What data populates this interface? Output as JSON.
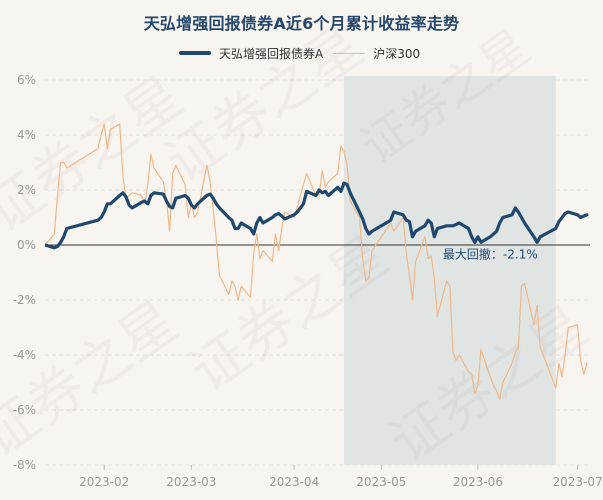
{
  "title": "天弘增强回报债券A近6个月累计收益率走势",
  "legend": {
    "fund_label": "天弘增强回报债券A",
    "index_label": "沪深300",
    "fund_color": "#1f4870",
    "index_color": "#f0b889"
  },
  "watermark_text": "证券之星",
  "colors": {
    "background": "#f8f4ef",
    "drawdown_shade": "#dce0e0",
    "axis_text": "#999999"
  },
  "chart_data": {
    "type": "line",
    "title": "天弘增强回报债券A近6个月累计收益率走势",
    "xlabel": "",
    "ylabel": "",
    "ylim": [
      -8,
      6
    ],
    "yticks": [
      -8,
      -6,
      -4,
      -2,
      0,
      2,
      4,
      6
    ],
    "ytick_labels": [
      "-8%",
      "-6%",
      "-4%",
      "-2%",
      "0%",
      "2%",
      "4%",
      "6%"
    ],
    "x_range": [
      "2023-01-13",
      "2023-07-07"
    ],
    "xticks": [
      "2023-02-01",
      "2023-03-01",
      "2023-04-03",
      "2023-05-01",
      "2023-06-01",
      "2023-07-03"
    ],
    "xtick_labels": [
      "2023-02",
      "2023-03",
      "2023-04",
      "2023-05",
      "2023-06",
      "2023-07"
    ],
    "grid": "horizontal",
    "legend_position": "top-center",
    "series": [
      {
        "name": "天弘增强回报债券A",
        "points": [
          [
            "2023-01-13",
            0.0
          ],
          [
            "2023-01-16",
            -0.1
          ],
          [
            "2023-01-17",
            -0.05
          ],
          [
            "2023-01-18",
            0.1
          ],
          [
            "2023-01-19",
            0.3
          ],
          [
            "2023-01-20",
            0.6
          ],
          [
            "2023-01-30",
            0.9
          ],
          [
            "2023-01-31",
            1.0
          ],
          [
            "2023-02-01",
            1.2
          ],
          [
            "2023-02-02",
            1.5
          ],
          [
            "2023-02-03",
            1.5
          ],
          [
            "2023-02-06",
            1.8
          ],
          [
            "2023-02-07",
            1.9
          ],
          [
            "2023-02-08",
            1.75
          ],
          [
            "2023-02-09",
            1.45
          ],
          [
            "2023-02-10",
            1.35
          ],
          [
            "2023-02-13",
            1.55
          ],
          [
            "2023-02-14",
            1.6
          ],
          [
            "2023-02-15",
            1.5
          ],
          [
            "2023-02-16",
            1.8
          ],
          [
            "2023-02-17",
            1.9
          ],
          [
            "2023-02-20",
            1.85
          ],
          [
            "2023-02-21",
            1.6
          ],
          [
            "2023-02-22",
            1.4
          ],
          [
            "2023-02-23",
            1.35
          ],
          [
            "2023-02-24",
            1.7
          ],
          [
            "2023-02-27",
            1.8
          ],
          [
            "2023-02-28",
            1.7
          ],
          [
            "2023-03-01",
            1.45
          ],
          [
            "2023-03-02",
            1.35
          ],
          [
            "2023-03-03",
            1.5
          ],
          [
            "2023-03-06",
            1.8
          ],
          [
            "2023-03-07",
            1.85
          ],
          [
            "2023-03-08",
            1.7
          ],
          [
            "2023-03-09",
            1.5
          ],
          [
            "2023-03-10",
            1.35
          ],
          [
            "2023-03-13",
            1.0
          ],
          [
            "2023-03-14",
            0.9
          ],
          [
            "2023-03-15",
            0.6
          ],
          [
            "2023-03-16",
            0.6
          ],
          [
            "2023-03-17",
            0.8
          ],
          [
            "2023-03-20",
            0.6
          ],
          [
            "2023-03-21",
            0.4
          ],
          [
            "2023-03-22",
            0.8
          ],
          [
            "2023-03-23",
            1.0
          ],
          [
            "2023-03-24",
            0.8
          ],
          [
            "2023-03-27",
            1.0
          ],
          [
            "2023-03-28",
            1.1
          ],
          [
            "2023-03-29",
            1.15
          ],
          [
            "2023-03-30",
            1.05
          ],
          [
            "2023-03-31",
            0.95
          ],
          [
            "2023-04-03",
            1.1
          ],
          [
            "2023-04-04",
            1.2
          ],
          [
            "2023-04-06",
            1.5
          ],
          [
            "2023-04-07",
            1.95
          ],
          [
            "2023-04-10",
            1.8
          ],
          [
            "2023-04-11",
            2.0
          ],
          [
            "2023-04-12",
            1.9
          ],
          [
            "2023-04-13",
            1.95
          ],
          [
            "2023-04-14",
            1.8
          ],
          [
            "2023-04-17",
            2.1
          ],
          [
            "2023-04-18",
            1.95
          ],
          [
            "2023-04-19",
            2.25
          ],
          [
            "2023-04-20",
            2.2
          ],
          [
            "2023-04-21",
            1.9
          ],
          [
            "2023-04-24",
            1.2
          ],
          [
            "2023-04-25",
            0.95
          ],
          [
            "2023-04-26",
            0.6
          ],
          [
            "2023-04-27",
            0.4
          ],
          [
            "2023-04-28",
            0.5
          ],
          [
            "2023-05-04",
            0.9
          ],
          [
            "2023-05-05",
            1.2
          ],
          [
            "2023-05-08",
            1.1
          ],
          [
            "2023-05-09",
            0.9
          ],
          [
            "2023-05-10",
            0.85
          ],
          [
            "2023-05-11",
            0.3
          ],
          [
            "2023-05-12",
            0.5
          ],
          [
            "2023-05-15",
            0.7
          ],
          [
            "2023-05-16",
            0.9
          ],
          [
            "2023-05-17",
            0.8
          ],
          [
            "2023-05-18",
            0.3
          ],
          [
            "2023-05-19",
            0.6
          ],
          [
            "2023-05-22",
            0.7
          ],
          [
            "2023-05-23",
            0.7
          ],
          [
            "2023-05-24",
            0.7
          ],
          [
            "2023-05-25",
            0.75
          ],
          [
            "2023-05-26",
            0.8
          ],
          [
            "2023-05-29",
            0.6
          ],
          [
            "2023-05-30",
            0.3
          ],
          [
            "2023-05-31",
            0.1
          ],
          [
            "2023-06-01",
            0.3
          ],
          [
            "2023-06-02",
            0.1
          ],
          [
            "2023-06-05",
            0.3
          ],
          [
            "2023-06-06",
            0.4
          ],
          [
            "2023-06-07",
            0.5
          ],
          [
            "2023-06-08",
            0.8
          ],
          [
            "2023-06-09",
            1.0
          ],
          [
            "2023-06-12",
            1.1
          ],
          [
            "2023-06-13",
            1.35
          ],
          [
            "2023-06-14",
            1.2
          ],
          [
            "2023-06-15",
            1.0
          ],
          [
            "2023-06-16",
            0.8
          ],
          [
            "2023-06-19",
            0.3
          ],
          [
            "2023-06-20",
            0.1
          ],
          [
            "2023-06-21",
            0.3
          ],
          [
            "2023-06-26",
            0.6
          ],
          [
            "2023-06-27",
            0.85
          ],
          [
            "2023-06-28",
            1.0
          ],
          [
            "2023-06-29",
            1.15
          ],
          [
            "2023-06-30",
            1.2
          ],
          [
            "2023-07-03",
            1.1
          ],
          [
            "2023-07-04",
            1.0
          ],
          [
            "2023-07-05",
            1.05
          ],
          [
            "2023-07-06",
            1.1
          ]
        ]
      },
      {
        "name": "沪深300",
        "points": [
          [
            "2023-01-13",
            0.0
          ],
          [
            "2023-01-16",
            0.4
          ],
          [
            "2023-01-17",
            1.8
          ],
          [
            "2023-01-18",
            3.0
          ],
          [
            "2023-01-19",
            3.0
          ],
          [
            "2023-01-20",
            2.8
          ],
          [
            "2023-01-30",
            3.5
          ],
          [
            "2023-01-31",
            4.0
          ],
          [
            "2023-02-01",
            4.4
          ],
          [
            "2023-02-02",
            3.5
          ],
          [
            "2023-02-03",
            4.2
          ],
          [
            "2023-02-06",
            4.4
          ],
          [
            "2023-02-07",
            2.5
          ],
          [
            "2023-02-08",
            1.7
          ],
          [
            "2023-02-09",
            1.8
          ],
          [
            "2023-02-10",
            1.9
          ],
          [
            "2023-02-13",
            1.8
          ],
          [
            "2023-02-14",
            1.5
          ],
          [
            "2023-02-15",
            2.2
          ],
          [
            "2023-02-16",
            3.3
          ],
          [
            "2023-02-17",
            2.8
          ],
          [
            "2023-02-20",
            2.3
          ],
          [
            "2023-02-21",
            1.6
          ],
          [
            "2023-02-22",
            0.5
          ],
          [
            "2023-02-23",
            2.6
          ],
          [
            "2023-02-24",
            2.9
          ],
          [
            "2023-02-27",
            2.2
          ],
          [
            "2023-02-28",
            1.0
          ],
          [
            "2023-03-01",
            1.5
          ],
          [
            "2023-03-02",
            1.0
          ],
          [
            "2023-03-03",
            1.2
          ],
          [
            "2023-03-06",
            2.9
          ],
          [
            "2023-03-07",
            2.3
          ],
          [
            "2023-03-08",
            1.3
          ],
          [
            "2023-03-09",
            0.2
          ],
          [
            "2023-03-10",
            -1.1
          ],
          [
            "2023-03-13",
            -1.8
          ],
          [
            "2023-03-14",
            -1.3
          ],
          [
            "2023-03-15",
            -1.5
          ],
          [
            "2023-03-16",
            -2.0
          ],
          [
            "2023-03-17",
            -1.5
          ],
          [
            "2023-03-20",
            -1.9
          ],
          [
            "2023-03-21",
            -0.3
          ],
          [
            "2023-03-22",
            0.4
          ],
          [
            "2023-03-23",
            -0.5
          ],
          [
            "2023-03-24",
            -0.2
          ],
          [
            "2023-03-27",
            -0.6
          ],
          [
            "2023-03-28",
            0.4
          ],
          [
            "2023-03-29",
            -0.2
          ],
          [
            "2023-03-30",
            0.6
          ],
          [
            "2023-03-31",
            1.2
          ],
          [
            "2023-04-03",
            1.0
          ],
          [
            "2023-04-04",
            1.4
          ],
          [
            "2023-04-06",
            2.2
          ],
          [
            "2023-04-07",
            2.6
          ],
          [
            "2023-04-10",
            1.8
          ],
          [
            "2023-04-11",
            1.8
          ],
          [
            "2023-04-12",
            2.7
          ],
          [
            "2023-04-13",
            2.1
          ],
          [
            "2023-04-14",
            2.3
          ],
          [
            "2023-04-17",
            2.6
          ],
          [
            "2023-04-18",
            3.6
          ],
          [
            "2023-04-19",
            3.4
          ],
          [
            "2023-04-20",
            2.9
          ],
          [
            "2023-04-21",
            1.6
          ],
          [
            "2023-04-24",
            1.0
          ],
          [
            "2023-04-25",
            -0.5
          ],
          [
            "2023-04-26",
            -1.3
          ],
          [
            "2023-04-27",
            -1.2
          ],
          [
            "2023-04-28",
            -0.2
          ],
          [
            "2023-05-04",
            0.8
          ],
          [
            "2023-05-05",
            0.5
          ],
          [
            "2023-05-08",
            1.0
          ],
          [
            "2023-05-09",
            -0.3
          ],
          [
            "2023-05-10",
            -1.1
          ],
          [
            "2023-05-11",
            -2.0
          ],
          [
            "2023-05-12",
            -0.6
          ],
          [
            "2023-05-15",
            0.3
          ],
          [
            "2023-05-16",
            -0.5
          ],
          [
            "2023-05-17",
            -0.4
          ],
          [
            "2023-05-18",
            -1.2
          ],
          [
            "2023-05-19",
            -2.6
          ],
          [
            "2023-05-22",
            -1.3
          ],
          [
            "2023-05-23",
            -1.5
          ],
          [
            "2023-05-24",
            -3.9
          ],
          [
            "2023-05-25",
            -4.2
          ],
          [
            "2023-05-26",
            -4.0
          ],
          [
            "2023-05-29",
            -4.6
          ],
          [
            "2023-05-30",
            -4.7
          ],
          [
            "2023-05-31",
            -5.4
          ],
          [
            "2023-06-01",
            -5.1
          ],
          [
            "2023-06-02",
            -3.8
          ],
          [
            "2023-06-05",
            -4.8
          ],
          [
            "2023-06-06",
            -5.1
          ],
          [
            "2023-06-07",
            -5.3
          ],
          [
            "2023-06-08",
            -5.6
          ],
          [
            "2023-06-09",
            -5.0
          ],
          [
            "2023-06-12",
            -4.3
          ],
          [
            "2023-06-13",
            -3.9
          ],
          [
            "2023-06-14",
            -3.7
          ],
          [
            "2023-06-15",
            -1.5
          ],
          [
            "2023-06-16",
            -1.4
          ],
          [
            "2023-06-19",
            -2.9
          ],
          [
            "2023-06-20",
            -2.2
          ],
          [
            "2023-06-21",
            -3.7
          ],
          [
            "2023-06-26",
            -5.2
          ],
          [
            "2023-06-27",
            -4.3
          ],
          [
            "2023-06-28",
            -4.8
          ],
          [
            "2023-06-29",
            -4.0
          ],
          [
            "2023-06-30",
            -3.0
          ],
          [
            "2023-07-03",
            -2.9
          ],
          [
            "2023-07-04",
            -4.2
          ],
          [
            "2023-07-05",
            -4.7
          ],
          [
            "2023-07-06",
            -4.3
          ]
        ]
      }
    ],
    "annotations": [
      {
        "type": "shaded_region",
        "x_start": "2023-04-19",
        "x_end": "2023-06-26",
        "label": "最大回撤：-2.1%",
        "label_x": "2023-06-05",
        "label_y": -0.35
      }
    ]
  }
}
